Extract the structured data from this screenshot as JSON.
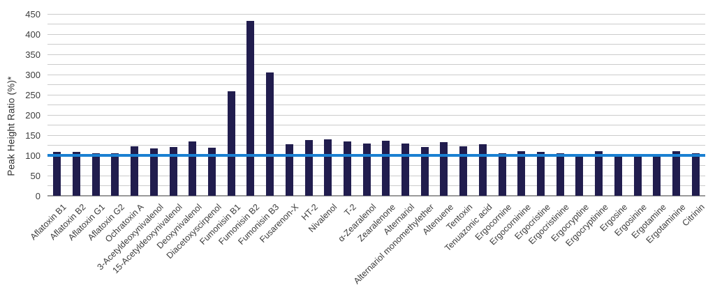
{
  "chart_data": {
    "type": "bar",
    "title": "",
    "xlabel": "",
    "ylabel": "Peak Height Ratio (%)*",
    "ylim": [
      0,
      450
    ],
    "ytick_step": 50,
    "grid_step": 25,
    "grid": true,
    "legend_position": "none",
    "bar_color": "#211d4e",
    "gridline_color": "#cbcbcb",
    "axis_line_color": "#9a9a9a",
    "reference_line": {
      "value": 100,
      "color": "#1a80d2"
    },
    "yticks": [
      0,
      50,
      100,
      150,
      200,
      250,
      300,
      350,
      400,
      450
    ],
    "categories": [
      "Aflatoxin B1",
      "Aflatoxin B2",
      "Aflatoxin G1",
      "Aflatoxin G2",
      "Ochratoxin A",
      "3-Acetyldeoxynivalenol",
      "15-Acetyldeoxynivalenol",
      "Deoxynivalenol",
      "Diacetoxyscirpenol",
      "Fumonisin B1",
      "Fumonisin B2",
      "Fumonisin B3",
      "Fusarenon-X",
      "HT-2",
      "Nivalenol",
      "T-2",
      "α-Zearalenol",
      "Zearalenone",
      "Alternariol",
      "Alternariol monomethylether",
      "Altenuene",
      "Tentoxin",
      "Tenuazonic acid",
      "Ergocornine",
      "Ergocorninine",
      "Ergocristine",
      "Ergocristinine",
      "Ergocryptine",
      "Ergocryptinine",
      "Ergosine",
      "Ergosinine",
      "Ergotamine",
      "Ergotaminine",
      "Citrinin"
    ],
    "values": [
      109,
      108,
      106,
      105,
      123,
      117,
      121,
      134,
      119,
      259,
      432,
      306,
      127,
      138,
      140,
      135,
      130,
      136,
      130,
      121,
      132,
      123,
      128,
      106,
      111,
      108,
      106,
      96,
      110,
      102,
      100,
      100,
      110,
      106
    ]
  }
}
